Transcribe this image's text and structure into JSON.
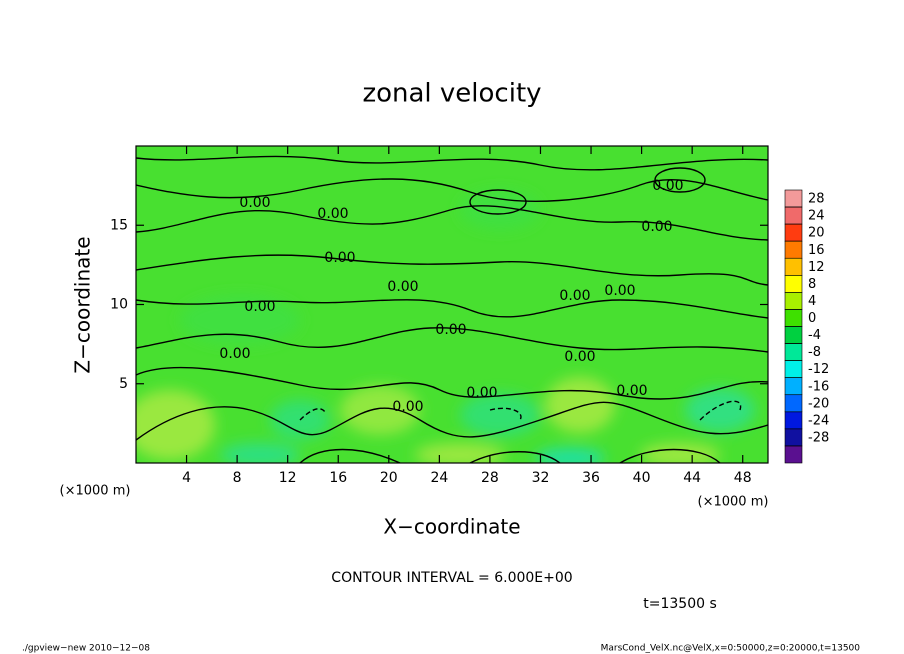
{
  "chart_data": {
    "type": "contour",
    "title": "zonal velocity",
    "xlabel": "X−coordinate",
    "ylabel": "Z−coordinate",
    "xunit_left": "(×1000 m)",
    "xunit_right": "(×1000 m)",
    "xlim": [
      0,
      50
    ],
    "xticks": [
      4,
      8,
      12,
      16,
      20,
      24,
      28,
      32,
      36,
      40,
      44,
      48
    ],
    "ylim": [
      0,
      20
    ],
    "yticks": [
      5,
      10,
      15
    ],
    "contour_labels": [
      "0.00",
      "0.00",
      "0.00",
      "0.00",
      "0.00",
      "0.00",
      "0.00",
      "0.00",
      "0.00",
      "0.00",
      "0.00",
      "0.00",
      "0.00",
      "0.00",
      "0.00"
    ],
    "colorbar": {
      "levels": [
        28,
        24,
        20,
        16,
        12,
        8,
        4,
        0,
        -4,
        -8,
        -12,
        -16,
        -20,
        -24,
        -28
      ],
      "colors": [
        "#f39a9a",
        "#f06a6a",
        "#ff3c10",
        "#ff7a00",
        "#ffc000",
        "#ffff00",
        "#a8f000",
        "#3ee000",
        "#00d040",
        "#00e898",
        "#00f0e8",
        "#00b0ff",
        "#0068ff",
        "#0018e0",
        "#1010a0",
        "#5a1090"
      ]
    },
    "contour_interval": "CONTOUR INTERVAL = 6.000E+00",
    "time": "t=13500 s",
    "footer_left": "./gpview−new   2010−12−08",
    "footer_right": "MarsCond_VelX.nc@VelX,x=0:50000,z=0:20000,t=13500"
  }
}
